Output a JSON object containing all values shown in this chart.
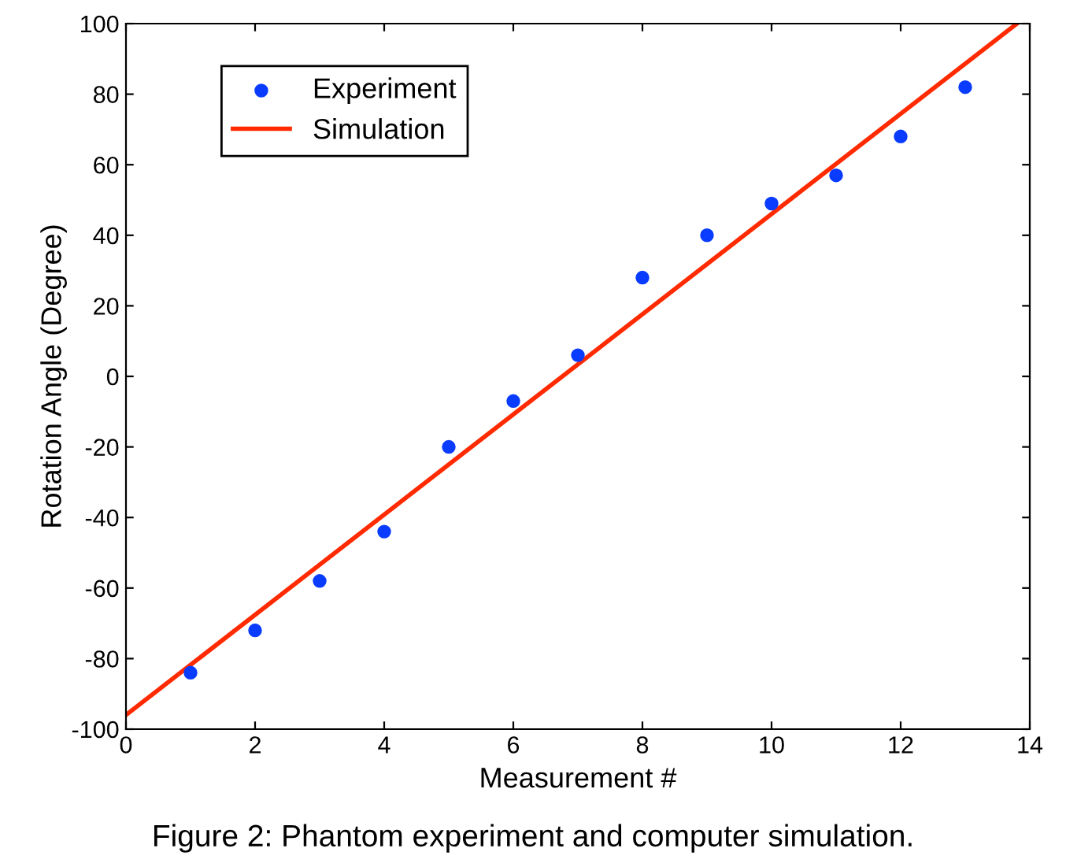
{
  "chart_data": {
    "type": "scatter",
    "xlabel": "Measurement #",
    "ylabel": "Rotation Angle (Degree)",
    "annotations": [
      "Figure 2: Phantom experiment and computer simulation."
    ],
    "series": [
      {
        "name": "Experiment",
        "color": "#0a3cff",
        "marker": "circle",
        "x": [
          1,
          2,
          3,
          4,
          5,
          6,
          7,
          8,
          9,
          10,
          11,
          12,
          13
        ],
        "values": [
          -84,
          -72,
          -58,
          -44,
          -20,
          -7,
          6,
          28,
          40,
          49,
          57,
          68,
          82
        ]
      },
      {
        "name": "Simulation",
        "type": "line",
        "color": "#ff2a00",
        "line_style": "solid",
        "x": [
          0,
          13.8
        ],
        "values": [
          -96,
          100
        ]
      }
    ],
    "xlim": [
      0,
      14
    ],
    "xticks": [
      0,
      2,
      4,
      6,
      8,
      10,
      12,
      14
    ],
    "ylim": [
      -100,
      100
    ],
    "yticks": [
      -100,
      -80,
      -60,
      -40,
      -20,
      0,
      20,
      40,
      60,
      80,
      100
    ],
    "grid": false,
    "legend": "top left"
  }
}
